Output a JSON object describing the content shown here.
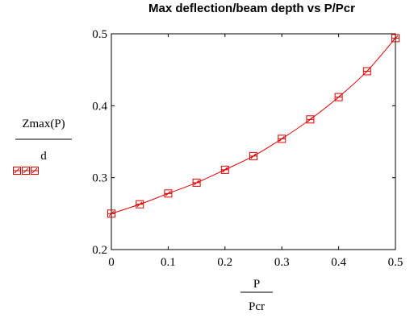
{
  "chart_data": {
    "type": "line",
    "title": "Max deflection/beam depth vs P/Pcr",
    "xlabel": {
      "numerator": "P",
      "denominator": "Pcr"
    },
    "ylabel": {
      "numerator": "Zmax(P)",
      "denominator": "d"
    },
    "xlim": [
      0,
      0.5
    ],
    "ylim": [
      0.2,
      0.5
    ],
    "x_ticks": [
      "0",
      "0.1",
      "0.2",
      "0.3",
      "0.4",
      "0.5"
    ],
    "y_ticks": [
      "0.2",
      "0.3",
      "0.4",
      "0.5"
    ],
    "grid": false,
    "series": [
      {
        "color": "#e00000",
        "marker": "square-with-x",
        "x": [
          0,
          0.05,
          0.1,
          0.15,
          0.2,
          0.25,
          0.3,
          0.35,
          0.4,
          0.45,
          0.5
        ],
        "y": [
          0.25,
          0.263,
          0.278,
          0.293,
          0.311,
          0.33,
          0.354,
          0.381,
          0.412,
          0.448,
          0.494
        ]
      }
    ]
  }
}
